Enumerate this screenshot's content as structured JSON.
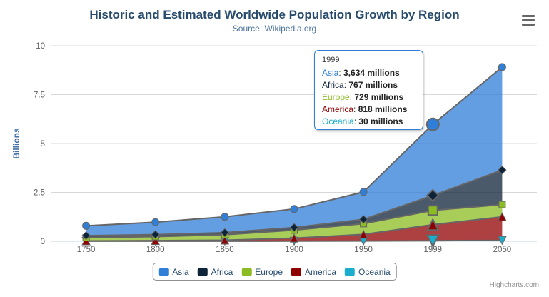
{
  "header": {
    "title": "Historic and Estimated Worldwide Population Growth by Region",
    "subtitle": "Source: Wikipedia.org",
    "menu_icon": "hamburger-icon"
  },
  "chart_data": {
    "type": "area",
    "stacking": "normal",
    "title": "Historic and Estimated Worldwide Population Growth by Region",
    "subtitle": "Source: Wikipedia.org",
    "categories": [
      "1750",
      "1800",
      "1850",
      "1900",
      "1950",
      "1999",
      "2050"
    ],
    "series": [
      {
        "name": "Asia",
        "color": "#2f7ed8",
        "marker_symbol": "circle",
        "values_millions": [
          502,
          635,
          809,
          947,
          1402,
          3634,
          5268
        ]
      },
      {
        "name": "Africa",
        "color": "#0d233a",
        "marker_symbol": "diamond",
        "values_millions": [
          106,
          107,
          111,
          133,
          221,
          767,
          1766
        ]
      },
      {
        "name": "Europe",
        "color": "#8bbc21",
        "marker_symbol": "square",
        "values_millions": [
          163,
          203,
          276,
          408,
          547,
          729,
          628
        ]
      },
      {
        "name": "America",
        "color": "#910000",
        "marker_symbol": "triangle",
        "values_millions": [
          18,
          31,
          54,
          156,
          339,
          818,
          1201
        ]
      },
      {
        "name": "Oceania",
        "color": "#1aadce",
        "marker_symbol": "triangle-down",
        "values_millions": [
          2,
          2,
          2,
          6,
          13,
          30,
          46
        ]
      }
    ],
    "stack_order_bottom_to_top": [
      "Oceania",
      "America",
      "Europe",
      "Africa",
      "Asia"
    ],
    "xlabel": "",
    "ylabel": "Billions",
    "yticks_billions": [
      0,
      2.5,
      5,
      7.5,
      10
    ],
    "ylim_billions": [
      0,
      10
    ],
    "units": "millions",
    "grid": true,
    "line_color": "#666666",
    "grid_line_color": "#d8d8d8",
    "axis_line_color": "#c0d0e0",
    "axis_label_color": "#606060",
    "yaxis_title_color": "#4572a7",
    "legend_position": "bottom-center"
  },
  "tooltip": {
    "header": "1999",
    "hover_category_index": 5,
    "border_color": "#2f7ed8",
    "rows": [
      {
        "name": "Asia",
        "color": "#2f7ed8",
        "value": "3,634",
        "suffix": "millions"
      },
      {
        "name": "Africa",
        "color": "#0d233a",
        "value": "767",
        "suffix": "millions"
      },
      {
        "name": "Europe",
        "color": "#8bbc21",
        "value": "729",
        "suffix": "millions"
      },
      {
        "name": "America",
        "color": "#910000",
        "value": "818",
        "suffix": "millions"
      },
      {
        "name": "Oceania",
        "color": "#1aadce",
        "value": "30",
        "suffix": "millions"
      }
    ]
  },
  "credits": {
    "label": "Highcharts.com"
  }
}
